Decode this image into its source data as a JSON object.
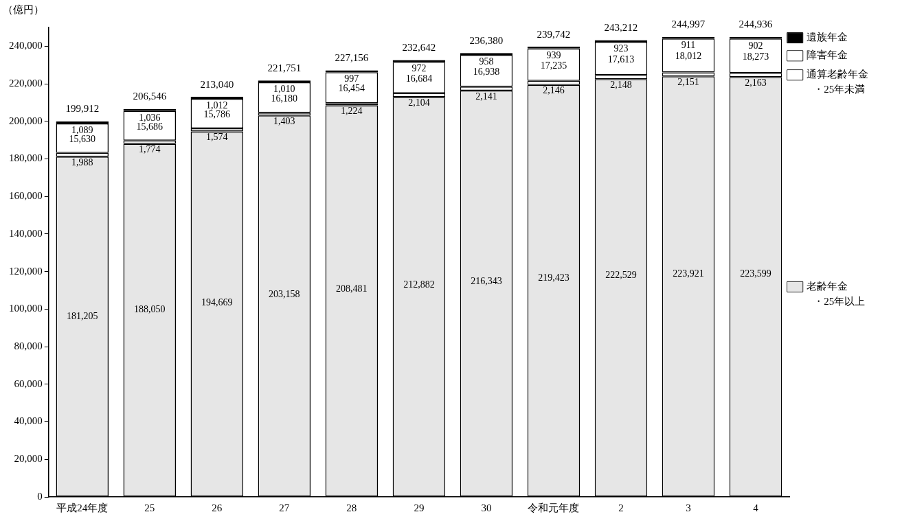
{
  "chart_data": {
    "type": "bar",
    "ylabel": "（億円）",
    "stacked": true,
    "grid": false,
    "legend": "right",
    "categories": [
      "平成24年度",
      "25",
      "26",
      "27",
      "28",
      "29",
      "30",
      "令和元年度",
      "2",
      "3",
      "4"
    ],
    "series": [
      {
        "name": "老齢年金・25年以上",
        "color": "#e6e6e6",
        "values": [
          181205,
          188050,
          194669,
          203158,
          208481,
          212882,
          216343,
          219423,
          222529,
          223921,
          223599
        ],
        "value_labels": [
          "181,205",
          "188,050",
          "194,669",
          "203,158",
          "208,481",
          "212,882",
          "216,343",
          "219,423",
          "222,529",
          "223,921",
          "223,599"
        ]
      },
      {
        "name": "通算老齢年金・25年未満",
        "color": "#ffffff",
        "values": [
          1988,
          1774,
          1574,
          1403,
          1224,
          2104,
          2141,
          2146,
          2148,
          2151,
          2163
        ],
        "value_labels": [
          "1,988",
          "1,774",
          "1,574",
          "1,403",
          "1,224",
          "2,104",
          "2,141",
          "2,146",
          "2,148",
          "2,151",
          "2,163"
        ]
      },
      {
        "name": "障害年金",
        "color": "#ffffff",
        "values": [
          15630,
          15686,
          15786,
          16180,
          16454,
          16684,
          16938,
          17235,
          17613,
          18012,
          18273
        ],
        "value_labels": [
          "15,630",
          "15,686",
          "15,786",
          "16,180",
          "16,454",
          "16,684",
          "16,938",
          "17,235",
          "17,613",
          "18,012",
          "18,273"
        ]
      },
      {
        "name": "遺族年金",
        "color": "#000000",
        "values": [
          1089,
          1036,
          1012,
          1010,
          997,
          972,
          958,
          939,
          923,
          911,
          902
        ],
        "value_labels": [
          "1,089",
          "1,036",
          "1,012",
          "1,010",
          "997",
          "972",
          "958",
          "939",
          "923",
          "911",
          "902"
        ]
      }
    ],
    "totals": [
      "199,912",
      "206,546",
      "213,040",
      "221,751",
      "227,156",
      "232,642",
      "236,380",
      "239,742",
      "243,212",
      "244,997",
      "244,936"
    ],
    "ylim": [
      0,
      250000
    ],
    "yticks": [
      0,
      {
        "value": 20000,
        "label": "20,000"
      },
      {
        "value": 40000,
        "label": "40,000"
      },
      {
        "value": 60000,
        "label": "60,000"
      },
      {
        "value": 80000,
        "label": "80,000"
      },
      {
        "value": 100000,
        "label": "100,000"
      },
      {
        "value": 120000,
        "label": "120,000"
      },
      {
        "value": 140000,
        "label": "140,000"
      },
      {
        "value": 160000,
        "label": "160,000"
      },
      {
        "value": 180000,
        "label": "180,000"
      },
      {
        "value": 200000,
        "label": "200,000"
      },
      {
        "value": 220000,
        "label": "220,000"
      },
      {
        "value": 240000,
        "label": "240,000"
      }
    ]
  }
}
